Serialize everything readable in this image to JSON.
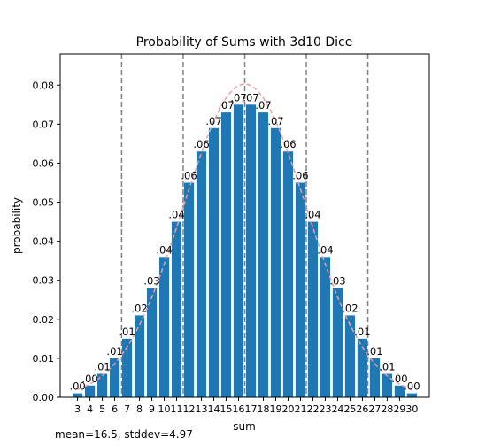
{
  "chart_data": {
    "type": "bar",
    "title": "Probability of Sums with 3d10 Dice",
    "xlabel": "sum",
    "ylabel": "probability",
    "ylim": [
      0,
      0.088
    ],
    "yticks": [
      "0.00",
      "0.01",
      "0.02",
      "0.03",
      "0.04",
      "0.05",
      "0.06",
      "0.07",
      "0.08"
    ],
    "ytick_values": [
      0,
      0.01,
      0.02,
      0.03,
      0.04,
      0.05,
      0.06,
      0.07,
      0.08
    ],
    "categories": [
      3,
      4,
      5,
      6,
      7,
      8,
      9,
      10,
      11,
      12,
      13,
      14,
      15,
      16,
      17,
      18,
      19,
      20,
      21,
      22,
      23,
      24,
      25,
      26,
      27,
      28,
      29,
      30
    ],
    "values": [
      0.001,
      0.003,
      0.006,
      0.01,
      0.015,
      0.021,
      0.028,
      0.036,
      0.045,
      0.055,
      0.063,
      0.069,
      0.073,
      0.075,
      0.075,
      0.073,
      0.069,
      0.063,
      0.055,
      0.045,
      0.036,
      0.028,
      0.021,
      0.015,
      0.01,
      0.006,
      0.003,
      0.001
    ],
    "bar_labels": [
      ".00",
      ".00",
      ".01",
      ".01",
      ".01",
      ".02",
      ".03",
      ".04",
      ".04",
      ".06",
      ".06",
      ".07",
      ".07",
      ".07",
      ".07",
      ".07",
      ".07",
      ".06",
      ".06",
      ".04",
      ".04",
      ".03",
      ".02",
      ".01",
      ".01",
      ".01",
      ".00",
      ".00"
    ],
    "vlines": [
      6.56,
      11.53,
      16.5,
      21.47,
      26.44
    ],
    "mean": 16.5,
    "stddev": 4.97,
    "bar_color": "#1f77b4",
    "vline_color": "#808080",
    "curve_color": "#e8a0a0",
    "grid": false,
    "legend": "none"
  },
  "footnote": "mean=16.5, stddev=4.97"
}
